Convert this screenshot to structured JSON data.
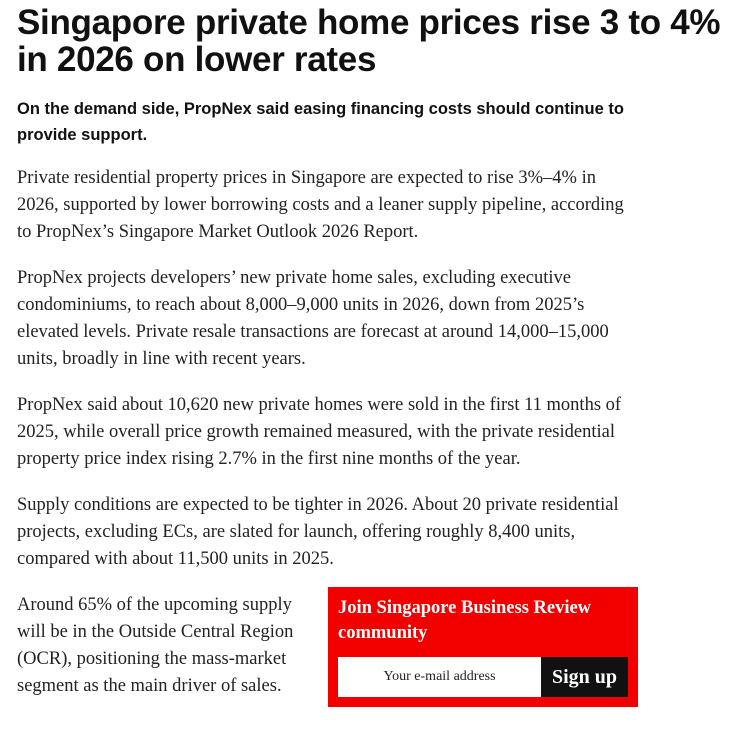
{
  "article": {
    "headline": "Singapore private home prices rise 3 to 4% in 2026 on lower rates",
    "subheadline": "On the demand side, PropNex said easing financing costs should continue to provide support.",
    "paragraphs": [
      "Private residential property prices in Singapore are expected to rise 3%–4% in 2026, supported by lower borrowing costs and a leaner supply pipeline, according to PropNex’s Singapore Market Outlook 2026 Report.",
      "PropNex projects developers’ new private home sales, excluding executive condominiums, to reach about 8,000–9,000 units in 2026, down from 2025’s elevated levels. Private resale transactions are forecast at around 14,000–15,000 units, broadly in line with recent years.",
      "PropNex said about 10,620 new private homes were sold in the first 11 months of 2025, while overall price growth remained measured, with the private residential property price index rising 2.7% in the first nine months of the year.",
      "Supply conditions are expected to be tighter in 2026. About 20 private residential projects, excluding ECs, are slated for launch, offering roughly 8,400 units, compared with about 11,500 units in 2025.",
      "Around 65% of the upcoming supply will be in the Outside Central Region (OCR), positioning the mass-market segment as the main driver of sales."
    ]
  },
  "signup": {
    "title": "Join Singapore Business Review community",
    "email_placeholder": "Your e-mail address",
    "button_label": "Sign up",
    "background_color": "#f20000",
    "button_color": "#111111"
  }
}
